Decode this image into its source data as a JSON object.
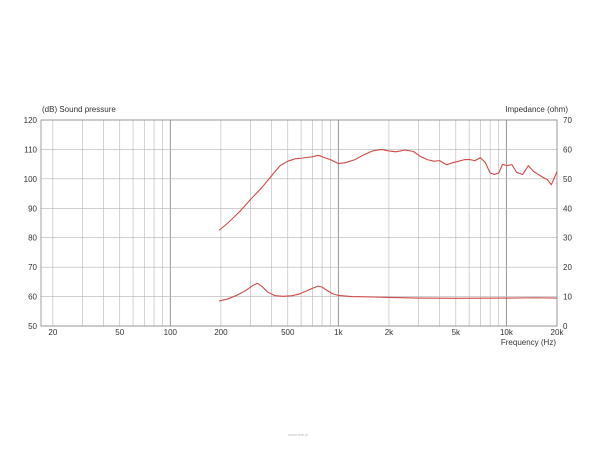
{
  "chart_data": {
    "type": "line",
    "title": "",
    "xlabel": "Frequency  (Hz)",
    "ylabel_left": "(dB)  Sound pressure",
    "ylabel_right": "Impedance  (ohm)",
    "x_scale": "log",
    "xlim": [
      17,
      20000
    ],
    "ylim_left": [
      50,
      120
    ],
    "ylim_right": [
      0,
      70
    ],
    "grid": true,
    "legend": "none",
    "x_ticks": [
      {
        "v": 20,
        "label": "20"
      },
      {
        "v": 50,
        "label": "50"
      },
      {
        "v": 100,
        "label": "100"
      },
      {
        "v": 200,
        "label": "200"
      },
      {
        "v": 500,
        "label": "500"
      },
      {
        "v": 1000,
        "label": "1k"
      },
      {
        "v": 2000,
        "label": "2k"
      },
      {
        "v": 5000,
        "label": "5k"
      },
      {
        "v": 10000,
        "label": "10k"
      },
      {
        "v": 20000,
        "label": "20k"
      }
    ],
    "y_ticks_left": [
      {
        "v": 50,
        "label": "50"
      },
      {
        "v": 60,
        "label": "60"
      },
      {
        "v": 70,
        "label": "70"
      },
      {
        "v": 80,
        "label": "80"
      },
      {
        "v": 90,
        "label": "90"
      },
      {
        "v": 100,
        "label": "100"
      },
      {
        "v": 110,
        "label": "110"
      },
      {
        "v": 120,
        "label": "120"
      }
    ],
    "y_ticks_right": [
      {
        "v": 0,
        "label": "0"
      },
      {
        "v": 10,
        "label": "10"
      },
      {
        "v": 20,
        "label": "20"
      },
      {
        "v": 30,
        "label": "30"
      },
      {
        "v": 40,
        "label": "40"
      },
      {
        "v": 50,
        "label": "50"
      },
      {
        "v": 60,
        "label": "60"
      },
      {
        "v": 70,
        "label": "70"
      }
    ],
    "gridlines_x": [
      20,
      30,
      40,
      50,
      60,
      70,
      80,
      90,
      100,
      200,
      300,
      400,
      500,
      600,
      700,
      800,
      900,
      1000,
      2000,
      3000,
      4000,
      5000,
      6000,
      7000,
      8000,
      9000,
      10000,
      20000
    ],
    "gridlines_y": [
      50,
      60,
      70,
      80,
      90,
      100,
      110,
      120
    ],
    "series": [
      {
        "axis": "left",
        "color": "#d04a4a",
        "x": [
          195,
          220,
          260,
          300,
          350,
          400,
          450,
          500,
          550,
          600,
          650,
          700,
          760,
          820,
          900,
          1000,
          1100,
          1250,
          1400,
          1600,
          1800,
          2000,
          2200,
          2500,
          2800,
          3100,
          3400,
          3700,
          4000,
          4400,
          4800,
          5200,
          5600,
          6000,
          6500,
          7000,
          7500,
          8000,
          8500,
          9000,
          9500,
          10000,
          10800,
          11500,
          12500,
          13500,
          14500,
          15500,
          16500,
          17500,
          18500,
          19500,
          20000
        ],
        "y": [
          82.5,
          85,
          89,
          93,
          97,
          101,
          104.5,
          106,
          106.8,
          107,
          107.3,
          107.5,
          108,
          107.3,
          106.5,
          105.2,
          105.5,
          106.5,
          108,
          109.5,
          110,
          109.5,
          109.2,
          109.8,
          109.3,
          107.5,
          106.5,
          106,
          106.2,
          104.8,
          105.5,
          106,
          106.5,
          106.6,
          106.2,
          107.2,
          105.5,
          102,
          101.5,
          102,
          105,
          104.5,
          104.8,
          102.2,
          101.5,
          104.5,
          102.5,
          101.5,
          100.5,
          99.8,
          98,
          101,
          102.5
        ]
      },
      {
        "axis": "right",
        "color": "#d04a4a",
        "x": [
          195,
          220,
          250,
          280,
          310,
          330,
          350,
          380,
          420,
          470,
          530,
          580,
          640,
          700,
          760,
          800,
          850,
          920,
          1000,
          1200,
          1500,
          2000,
          3000,
          5000,
          10000,
          15000,
          20000
        ],
        "y": [
          8.5,
          9.2,
          10.5,
          12,
          13.8,
          14.5,
          13.5,
          11.5,
          10.3,
          10.1,
          10.3,
          10.8,
          11.8,
          12.8,
          13.6,
          13.2,
          12.2,
          11,
          10.4,
          10,
          9.9,
          9.7,
          9.5,
          9.4,
          9.5,
          9.6,
          9.5
        ]
      }
    ]
  },
  "watermark_text": "www.tele.pl"
}
